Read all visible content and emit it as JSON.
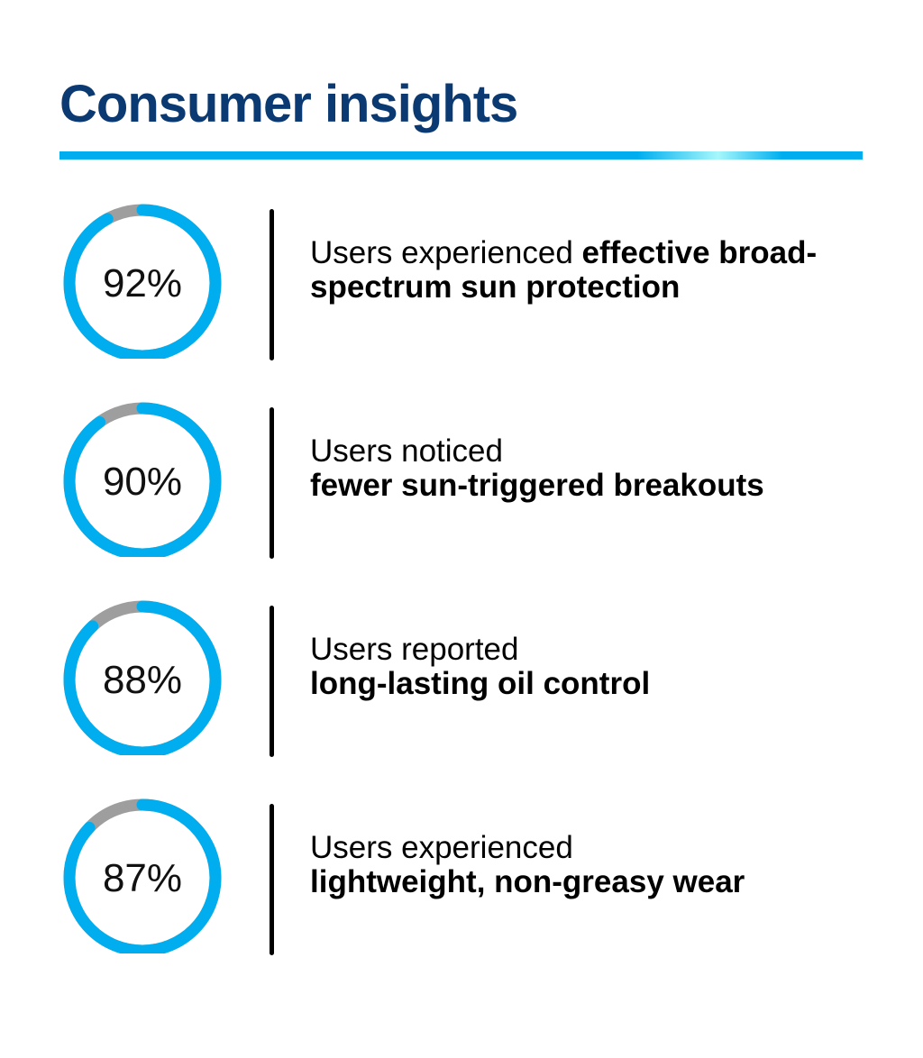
{
  "title": "Consumer insights",
  "colors": {
    "title": "#0b3a72",
    "accent": "#00aeef",
    "remainder": "#9e9e9e"
  },
  "chart_data": {
    "type": "pie",
    "variant": "donut-rings",
    "items": [
      {
        "value": 92,
        "label": "92%",
        "text_regular": "Users experienced ",
        "text_bold": "effective broad-spectrum sun protection"
      },
      {
        "value": 90,
        "label": "90%",
        "text_regular": "Users noticed",
        "text_bold": "fewer sun-triggered breakouts"
      },
      {
        "value": 88,
        "label": "88%",
        "text_regular": "Users reported",
        "text_bold": "long-lasting oil control"
      },
      {
        "value": 87,
        "label": "87%",
        "text_regular": "Users experienced",
        "text_bold": "lightweight, non-greasy wear"
      }
    ]
  }
}
